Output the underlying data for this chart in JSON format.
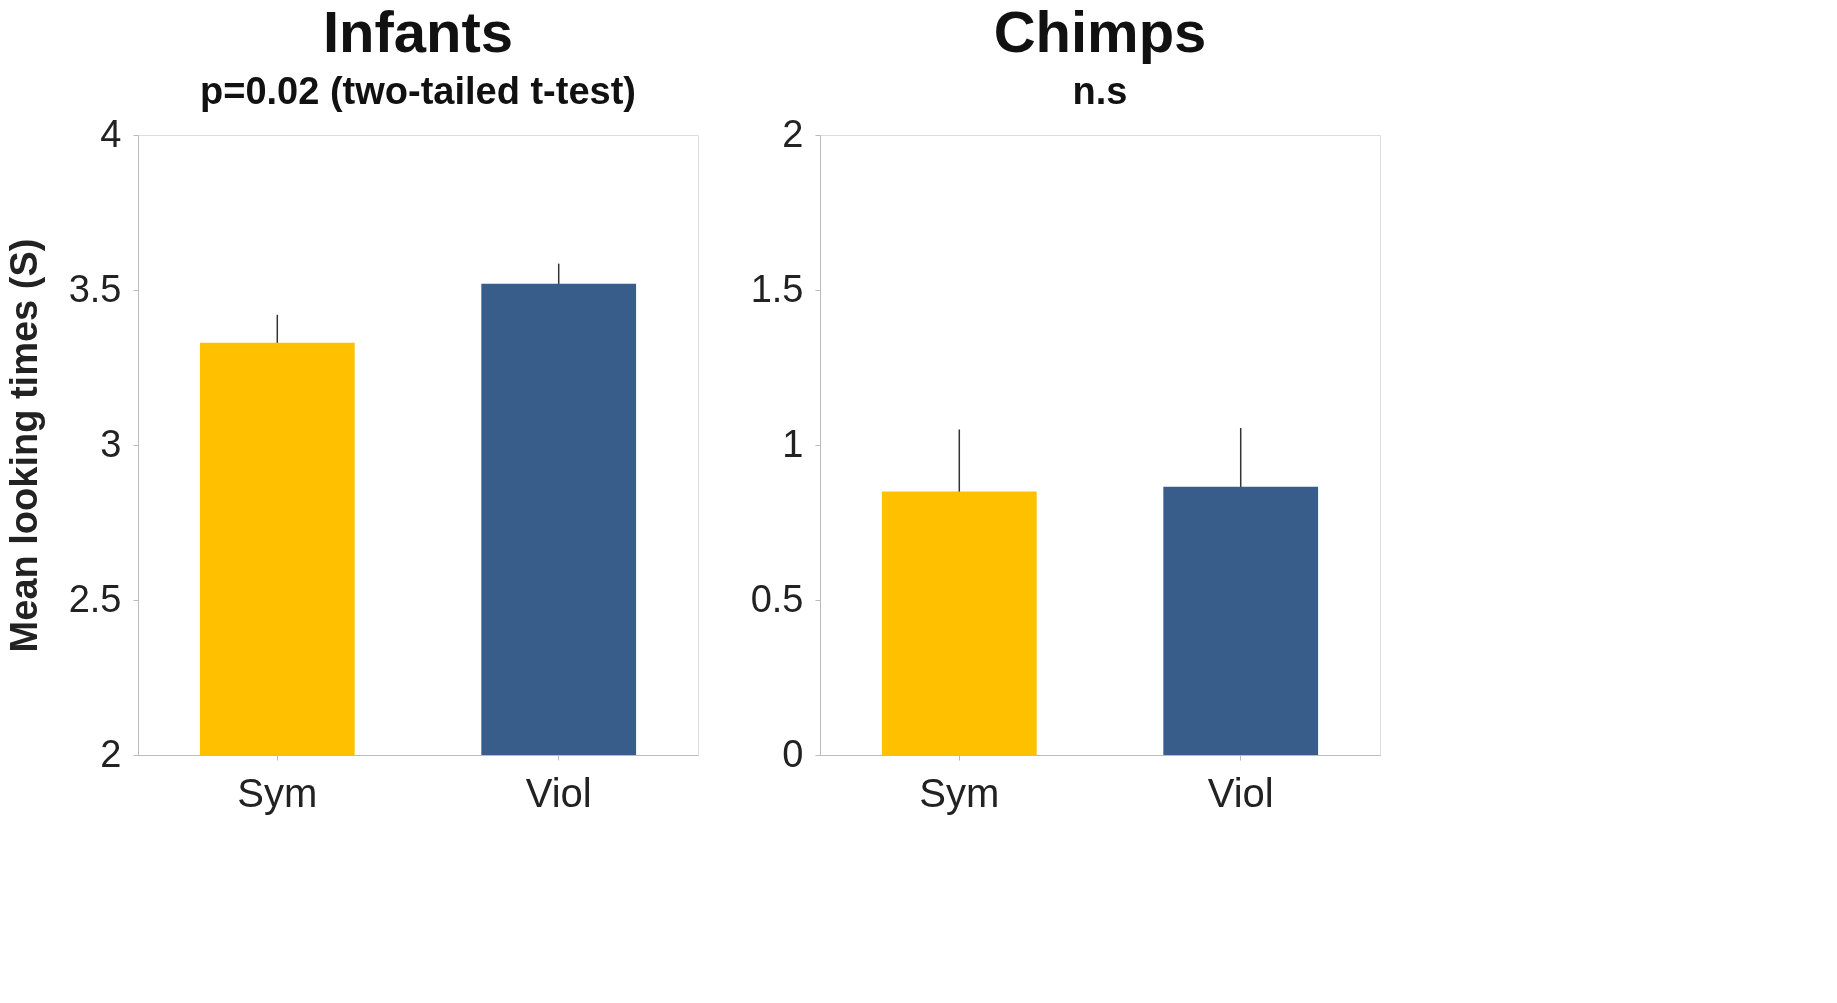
{
  "chart_data": [
    {
      "type": "bar",
      "title": "Infants",
      "subtitle": "p=0.02  (two-tailed t-test)",
      "ylabel": "Mean looking times (S)",
      "categories": [
        "Sym",
        "Viol"
      ],
      "values": [
        3.33,
        3.52
      ],
      "errors": [
        0.09,
        0.065
      ],
      "colors": [
        "#ffc000",
        "#385d8a"
      ],
      "ylim": [
        2,
        4
      ],
      "yticks": [
        2,
        2.5,
        3,
        3.5,
        4
      ],
      "grid": false
    },
    {
      "type": "bar",
      "title": "Chimps",
      "subtitle": "n.s",
      "categories": [
        "Sym",
        "Viol"
      ],
      "values": [
        0.85,
        0.865
      ],
      "errors": [
        0.2,
        0.19
      ],
      "colors": [
        "#ffc000",
        "#385d8a"
      ],
      "ylim": [
        0,
        2
      ],
      "yticks": [
        0,
        0.5,
        1,
        1.5,
        2
      ],
      "grid": false
    }
  ]
}
